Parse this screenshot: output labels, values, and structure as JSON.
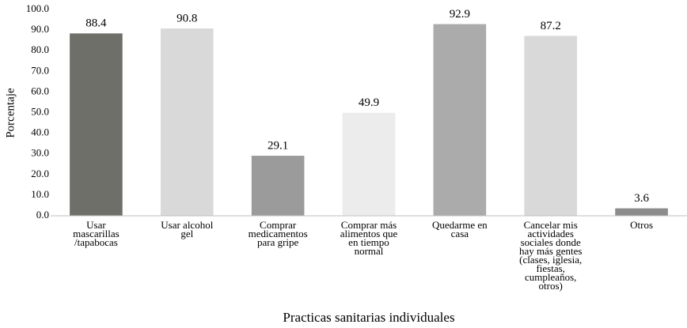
{
  "chart_data": {
    "type": "bar",
    "x_label": "Practicas sanitarias individuales",
    "y_label": "Porcentaje",
    "categories": [
      "Usar\nmascarillas\n/tapabocas",
      "Usar alcohol\ngel",
      "Comprar\nmedicamentos\npara gripe",
      "Comprar más\nalimentos que\nen tiempo\nnormal",
      "Quedarme en\ncasa",
      "Cancelar mis\nactividades\nsociales donde\nhay más gentes\n(clases, iglesia,\nfiestas,\ncumpleaños,\notros)",
      "Otros"
    ],
    "values": [
      88.4,
      90.8,
      29.1,
      49.9,
      92.9,
      87.2,
      3.6
    ],
    "colors": [
      "#6f6f6a",
      "#d9d9d9",
      "#9b9b9b",
      "#ececec",
      "#ababab",
      "#d9d9d9",
      "#8c8c8c"
    ],
    "ylim": [
      0,
      100
    ],
    "yticks": [
      {
        "value": 0,
        "label": "0.0"
      },
      {
        "value": 10,
        "label": "10.0"
      },
      {
        "value": 20,
        "label": "20.0"
      },
      {
        "value": 30,
        "label": "30.0"
      },
      {
        "value": 40,
        "label": "40.0"
      },
      {
        "value": 50,
        "label": "50.0"
      },
      {
        "value": 60,
        "label": "60.0"
      },
      {
        "value": 70,
        "label": "70.0"
      },
      {
        "value": 80,
        "label": "80.0"
      },
      {
        "value": 90,
        "label": "90.0"
      },
      {
        "value": 100,
        "label": "100.0"
      }
    ],
    "grid": false
  }
}
